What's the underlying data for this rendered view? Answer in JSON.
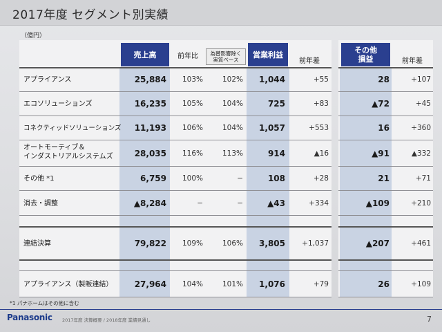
{
  "title": "2017年度 セグメント別実績",
  "unit": "（億円）",
  "headers": {
    "sales": "売上高",
    "yoy": "前年比",
    "fx_excl": "為替影響除く\n実質ベース",
    "op_profit": "営業利益",
    "diff": "前年差",
    "other_pl": "その他\n損益",
    "diff2": "前年差"
  },
  "rows": [
    {
      "label": "アプライアンス",
      "sales": "25,884",
      "yoy": "103%",
      "fx": "102%",
      "op": "1,044",
      "diff": "+55",
      "other": "28",
      "diff2": "+107"
    },
    {
      "label": "エコソリューションズ",
      "sales": "16,235",
      "yoy": "105%",
      "fx": "104%",
      "op": "725",
      "diff": "+83",
      "other": "▲72",
      "diff2": "+45"
    },
    {
      "label": "コネクティッドソリューションズ",
      "sales": "11,193",
      "yoy": "106%",
      "fx": "104%",
      "op": "1,057",
      "diff": "+553",
      "other": "16",
      "diff2": "+360"
    },
    {
      "label": "オートモーティブ＆\nインダストリアルシステムズ",
      "sales": "28,035",
      "yoy": "116%",
      "fx": "113%",
      "op": "914",
      "diff": "▲16",
      "other": "▲91",
      "diff2": "▲332"
    },
    {
      "label": "その他 *1",
      "sales": "6,759",
      "yoy": "100%",
      "fx": "−",
      "op": "108",
      "diff": "+28",
      "other": "21",
      "diff2": "+71"
    },
    {
      "label": "消去・調整",
      "sales": "▲8,284",
      "yoy": "−",
      "fx": "−",
      "op": "▲43",
      "diff": "+334",
      "other": "▲109",
      "diff2": "+210"
    }
  ],
  "total": {
    "label": "連結決算",
    "sales": "79,822",
    "yoy": "109%",
    "fx": "106%",
    "op": "3,805",
    "diff": "+1,037",
    "other": "▲207",
    "diff2": "+461"
  },
  "extra": {
    "label": "アプライアンス（製販連結）",
    "sales": "27,964",
    "yoy": "104%",
    "fx": "101%",
    "op": "1,076",
    "diff": "+79",
    "other": "26",
    "diff2": "+109"
  },
  "footnote": "*1 パナホームはその他に含む",
  "logo": "Panasonic",
  "footer_note": "2017年度 決算概要 / 2018年度 業績見通し",
  "page": "7"
}
